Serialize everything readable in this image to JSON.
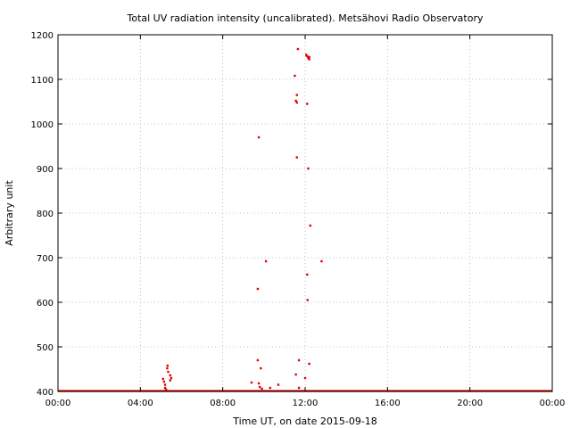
{
  "chart_data": {
    "type": "scatter",
    "title": "Total UV radiation intensity (uncalibrated). Metsähovi Radio Observatory",
    "xlabel": "Time UT, on date 2015-09-18",
    "ylabel": "Arbitrary unit",
    "xlim": [
      0,
      24
    ],
    "ylim": [
      400,
      1200
    ],
    "x_tick_values": [
      0,
      4,
      8,
      12,
      16,
      20,
      24
    ],
    "x_ticks": [
      "00:00",
      "04:00",
      "08:00",
      "12:00",
      "16:00",
      "20:00",
      "00:00"
    ],
    "y_ticks": [
      400,
      500,
      600,
      700,
      800,
      900,
      1000,
      1100,
      1200
    ],
    "grid": true,
    "color": "#e00000",
    "baseline": {
      "value": 401,
      "from": 0,
      "to": 24
    },
    "series": [
      {
        "points": [
          [
            5.1,
            428
          ],
          [
            5.15,
            422
          ],
          [
            5.2,
            415
          ],
          [
            5.2,
            408
          ],
          [
            5.25,
            404
          ],
          [
            5.3,
            452
          ],
          [
            5.32,
            458
          ],
          [
            5.35,
            444
          ],
          [
            5.45,
            436
          ],
          [
            5.5,
            430
          ],
          [
            5.45,
            425
          ],
          [
            9.4,
            420
          ],
          [
            9.7,
            630
          ],
          [
            9.7,
            470
          ],
          [
            9.75,
            418
          ],
          [
            9.8,
            410
          ],
          [
            9.85,
            452
          ],
          [
            9.75,
            970
          ],
          [
            9.9,
            406
          ],
          [
            10.1,
            692
          ],
          [
            10.3,
            408
          ],
          [
            10.7,
            415
          ],
          [
            11.5,
            1108
          ],
          [
            11.55,
            1052
          ],
          [
            11.6,
            1048
          ],
          [
            11.6,
            1065
          ],
          [
            11.6,
            925
          ],
          [
            11.65,
            1168
          ],
          [
            11.7,
            470
          ],
          [
            11.55,
            438
          ],
          [
            11.7,
            408
          ],
          [
            12.0,
            430
          ],
          [
            12.05,
            1155
          ],
          [
            12.1,
            1045
          ],
          [
            12.1,
            1152
          ],
          [
            12.1,
            662
          ],
          [
            12.12,
            605
          ],
          [
            12.15,
            1148
          ],
          [
            12.15,
            900
          ],
          [
            12.2,
            1150
          ],
          [
            12.2,
            1145
          ],
          [
            12.25,
            772
          ],
          [
            12.2,
            462
          ],
          [
            12.8,
            692
          ]
        ]
      }
    ]
  }
}
